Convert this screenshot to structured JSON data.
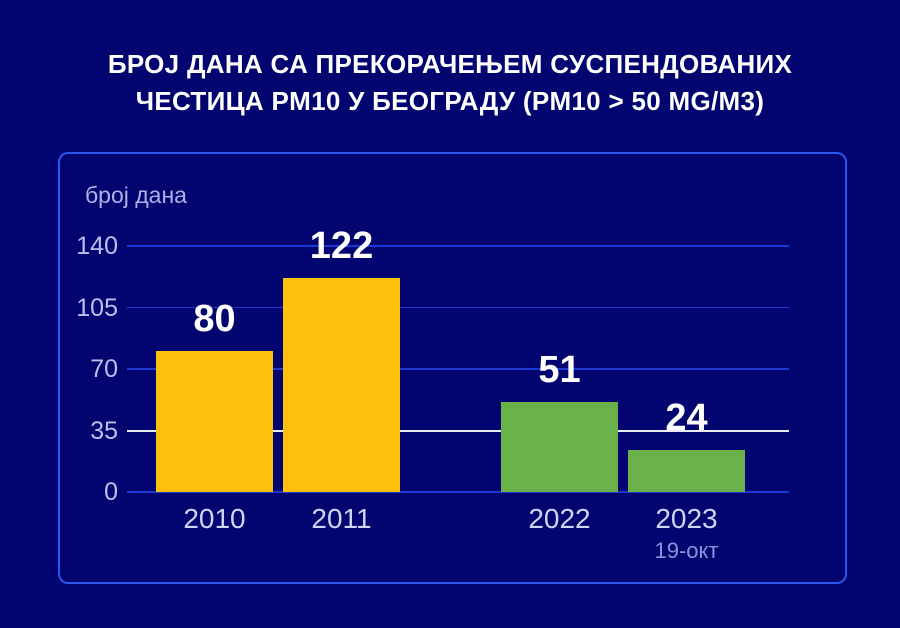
{
  "title": {
    "line1": "БРОЈ ДАНА СА ПРЕКОРАЧЕЊЕМ СУСПЕНДОВАНИХ",
    "line2": "ЧЕСТИЦА PM10 У БЕОГРАДУ (PM10 > 50 MG/M3)"
  },
  "chart_data": {
    "type": "bar",
    "title": "БРОЈ ДАНА СА ПРЕКОРАЧЕЊЕМ СУСПЕНДОВАНИХ ЧЕСТИЦА PM10 У БЕОГРАДУ (PM10 > 50 MG/M3)",
    "ylabel": "број дана",
    "xlabel": "",
    "categories": [
      "2010",
      "2011",
      "2022",
      "2023"
    ],
    "category_sublabels": [
      "",
      "",
      "",
      "19-окт"
    ],
    "values": [
      80,
      122,
      51,
      24
    ],
    "bar_colors": [
      "#fcc00d",
      "#fcc00d",
      "#69b24a",
      "#69b24a"
    ],
    "yticks": [
      0,
      35,
      70,
      105,
      140
    ],
    "ylim": [
      0,
      150
    ],
    "grid": true,
    "legend": "none",
    "reference_line": {
      "value": 35,
      "color": "#e9ecf5"
    }
  },
  "colors": {
    "background": "#02046f",
    "panel_border": "#2b57ea",
    "gridline": "#1c38d2",
    "limit_line": "#e9ecf5",
    "bar_yellow": "#fcc00d",
    "bar_green": "#69b24a",
    "title_text": "#ffffff",
    "value_text": "#ffffff",
    "tick_text": "#b9c0ec",
    "year_text": "#cfd4f4",
    "sublabel_text": "#8694da",
    "axis_title_text": "#aab3e6"
  }
}
